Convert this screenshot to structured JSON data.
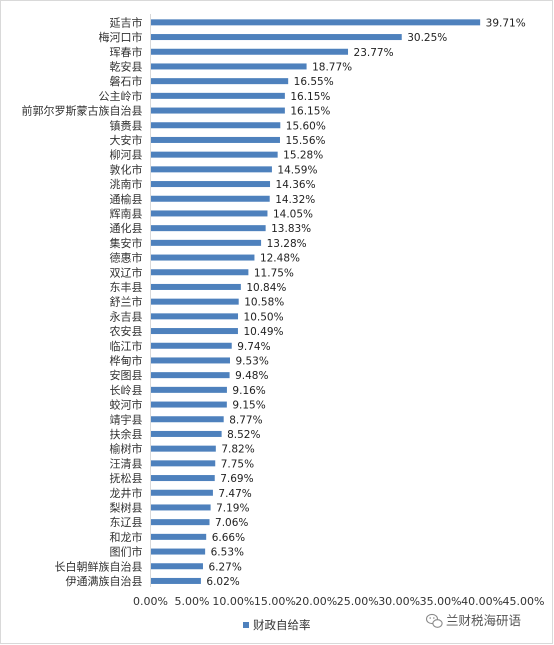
{
  "chart_data": {
    "type": "bar",
    "orientation": "horizontal",
    "categories": [
      "延吉市",
      "梅河口市",
      "珲春市",
      "乾安县",
      "磐石市",
      "公主岭市",
      "前郭尔罗斯蒙古族自治县",
      "镇赉县",
      "大安市",
      "柳河县",
      "敦化市",
      "洮南市",
      "通榆县",
      "辉南县",
      "通化县",
      "集安市",
      "德惠市",
      "双辽市",
      "东丰县",
      "舒兰市",
      "永吉县",
      "农安县",
      "临江市",
      "桦甸市",
      "安图县",
      "长岭县",
      "蛟河市",
      "靖宇县",
      "扶余县",
      "榆树市",
      "汪清县",
      "抚松县",
      "龙井市",
      "梨树县",
      "东辽县",
      "和龙市",
      "图们市",
      "长白朝鲜族自治县",
      "伊通满族自治县"
    ],
    "series": [
      {
        "name": "财政自给率",
        "values": [
          39.71,
          30.25,
          23.77,
          18.77,
          16.55,
          16.15,
          16.15,
          15.6,
          15.56,
          15.28,
          14.59,
          14.36,
          14.32,
          14.05,
          13.83,
          13.28,
          12.48,
          11.75,
          10.84,
          10.58,
          10.5,
          10.49,
          9.74,
          9.53,
          9.48,
          9.16,
          9.15,
          8.77,
          8.52,
          7.82,
          7.75,
          7.69,
          7.47,
          7.19,
          7.06,
          6.66,
          6.53,
          6.27,
          6.02
        ],
        "labels": [
          "39.71%",
          "30.25%",
          "23.77%",
          "18.77%",
          "16.55%",
          "16.15%",
          "16.15%",
          "15.60%",
          "15.56%",
          "15.28%",
          "14.59%",
          "14.36%",
          "14.32%",
          "14.05%",
          "13.83%",
          "13.28%",
          "12.48%",
          "11.75%",
          "10.84%",
          "10.58%",
          "10.50%",
          "10.49%",
          "9.74%",
          "9.53%",
          "9.48%",
          "9.16%",
          "9.15%",
          "8.77%",
          "8.52%",
          "7.82%",
          "7.75%",
          "7.69%",
          "7.47%",
          "7.19%",
          "7.06%",
          "6.66%",
          "6.53%",
          "6.27%",
          "6.02%"
        ]
      }
    ],
    "xlim": [
      0,
      45
    ],
    "xticks": [
      0,
      5,
      10,
      15,
      20,
      25,
      30,
      35,
      40,
      45
    ],
    "xtick_labels": [
      "0.00%",
      "5.00%",
      "10.00%",
      "15.00%",
      "20.00%",
      "25.00%",
      "30.00%",
      "35.00%",
      "40.00%",
      "45.00%"
    ],
    "grid": false,
    "legend": "bottom",
    "colors": {
      "bar": "#4e81bd"
    }
  },
  "watermark": {
    "icon": "wechat-icon",
    "text": "兰财税海研语"
  }
}
